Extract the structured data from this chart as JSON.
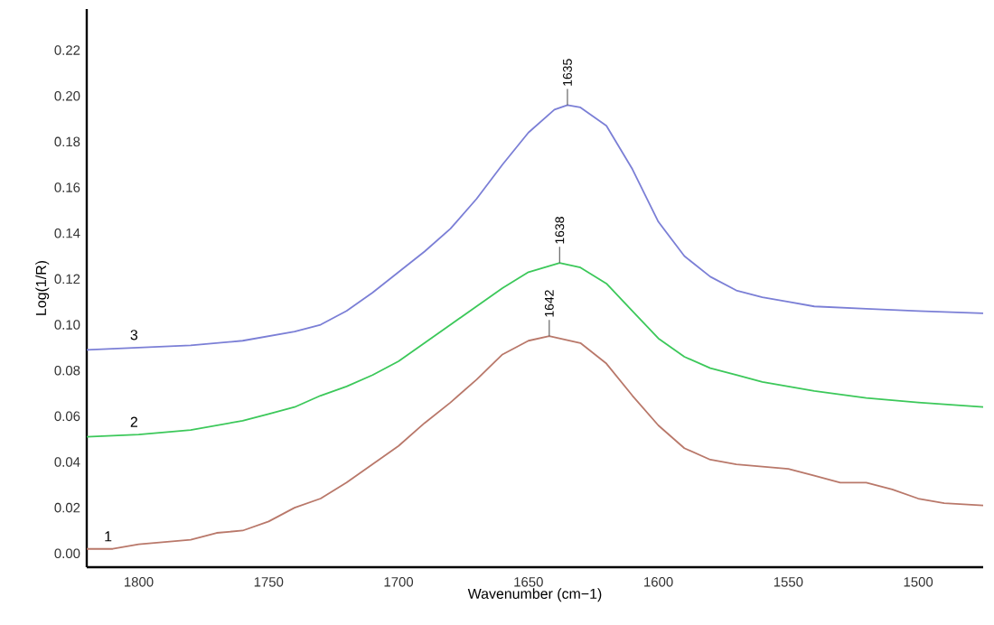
{
  "chart_data": {
    "type": "line",
    "xlabel": "Wavenumber (cm−1)",
    "ylabel": "Log(1/R)",
    "xlim": [
      1820,
      1475
    ],
    "ylim": [
      -0.006,
      0.238
    ],
    "xticks": [
      1800,
      1750,
      1700,
      1650,
      1600,
      1550,
      1500
    ],
    "yticks": [
      {
        "value": 0,
        "label": "0.00"
      },
      {
        "value": 0.02,
        "label": "0.02"
      },
      {
        "value": 0.04,
        "label": "0.04"
      },
      {
        "value": 0.06,
        "label": "0.06"
      },
      {
        "value": 0.08,
        "label": "0.08"
      },
      {
        "value": 0.1,
        "label": "0.10"
      },
      {
        "value": 0.12,
        "label": "0.12"
      },
      {
        "value": 0.14,
        "label": "0.14"
      },
      {
        "value": 0.16,
        "label": "0.16"
      },
      {
        "value": 0.18,
        "label": "0.18"
      },
      {
        "value": 0.2,
        "label": "0.20"
      },
      {
        "value": 0.22,
        "label": "0.22"
      }
    ],
    "series": [
      {
        "name": "1",
        "color": "#b9786a",
        "x": [
          1820,
          1810,
          1800,
          1790,
          1780,
          1770,
          1760,
          1750,
          1740,
          1730,
          1720,
          1710,
          1700,
          1690,
          1680,
          1670,
          1660,
          1650,
          1642,
          1630,
          1620,
          1610,
          1600,
          1590,
          1580,
          1570,
          1560,
          1550,
          1540,
          1530,
          1520,
          1510,
          1500,
          1490,
          1475
        ],
        "values": [
          0.002,
          0.002,
          0.004,
          0.005,
          0.006,
          0.009,
          0.01,
          0.014,
          0.02,
          0.024,
          0.031,
          0.039,
          0.047,
          0.057,
          0.066,
          0.076,
          0.087,
          0.093,
          0.095,
          0.092,
          0.083,
          0.069,
          0.056,
          0.046,
          0.041,
          0.039,
          0.038,
          0.037,
          0.034,
          0.031,
          0.031,
          0.028,
          0.024,
          0.022,
          0.021
        ]
      },
      {
        "name": "2",
        "color": "#3cc85a",
        "x": [
          1820,
          1800,
          1780,
          1760,
          1750,
          1740,
          1730,
          1720,
          1710,
          1700,
          1690,
          1680,
          1670,
          1660,
          1650,
          1638,
          1630,
          1620,
          1610,
          1600,
          1590,
          1580,
          1570,
          1560,
          1550,
          1540,
          1520,
          1500,
          1475
        ],
        "values": [
          0.051,
          0.052,
          0.054,
          0.058,
          0.061,
          0.064,
          0.069,
          0.073,
          0.078,
          0.084,
          0.092,
          0.1,
          0.108,
          0.116,
          0.123,
          0.127,
          0.125,
          0.118,
          0.106,
          0.094,
          0.086,
          0.081,
          0.078,
          0.075,
          0.073,
          0.071,
          0.068,
          0.066,
          0.064
        ]
      },
      {
        "name": "3",
        "color": "#7b7fd6",
        "x": [
          1820,
          1800,
          1780,
          1760,
          1740,
          1730,
          1720,
          1710,
          1700,
          1690,
          1680,
          1670,
          1660,
          1650,
          1640,
          1635,
          1630,
          1620,
          1610,
          1600,
          1590,
          1580,
          1570,
          1560,
          1550,
          1540,
          1520,
          1500,
          1475
        ],
        "values": [
          0.089,
          0.09,
          0.091,
          0.093,
          0.097,
          0.1,
          0.106,
          0.114,
          0.123,
          0.132,
          0.142,
          0.155,
          0.17,
          0.184,
          0.194,
          0.196,
          0.195,
          0.187,
          0.168,
          0.145,
          0.13,
          0.121,
          0.115,
          0.112,
          0.11,
          0.108,
          0.107,
          0.106,
          0.105
        ]
      }
    ],
    "annotations": [
      {
        "text": "1642",
        "x": 1642,
        "y": 0.095
      },
      {
        "text": "1638",
        "x": 1638,
        "y": 0.127
      },
      {
        "text": "1635",
        "x": 1635,
        "y": 0.196
      }
    ]
  }
}
